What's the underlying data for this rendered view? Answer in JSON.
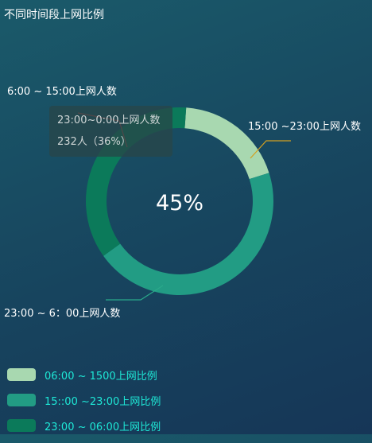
{
  "title": "不同时间段上网比例",
  "colors": {
    "light": "#a8d8b0",
    "mid": "#229c84",
    "dark": "#0b7a5a",
    "line_top_right": "#d4a020",
    "line_top_left": "#c94c4c",
    "line_bottom": "#2aa98a"
  },
  "center_label": "45%",
  "tooltip": {
    "line1": "23:00~0:00上网人数",
    "line2": "232人（36%）"
  },
  "chart_data": {
    "type": "pie",
    "title": "不同时间段上网比例",
    "slices": [
      {
        "label": "6:00 ~ 15:00上网人数",
        "value": 19
      },
      {
        "label": "15:00 ~23:00上网人数",
        "value": 45
      },
      {
        "label": "23:00 ~  6：00上网人数",
        "value": 36
      }
    ],
    "legend": [
      "06:00 ~ 1500上网比例",
      "15::00 ~23:00上网比例",
      "23:00 ~ 06:00上网比例"
    ],
    "legend_placement": "bottom-left"
  }
}
